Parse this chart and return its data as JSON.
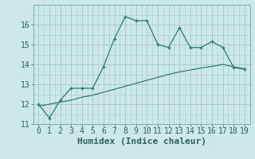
{
  "xlabel": "Humidex (Indice chaleur)",
  "ylabel": "",
  "background_color": "#cce8e8",
  "grid_color": "#aacccc",
  "line_color": "#2e7d6e",
  "x_data": [
    0,
    1,
    2,
    3,
    4,
    5,
    6,
    7,
    8,
    9,
    10,
    11,
    12,
    13,
    14,
    15,
    16,
    17,
    18,
    19
  ],
  "y_curve": [
    12.0,
    11.3,
    12.2,
    12.8,
    12.8,
    12.8,
    13.9,
    15.3,
    16.4,
    16.2,
    16.2,
    15.0,
    14.85,
    15.85,
    14.85,
    14.85,
    15.15,
    14.85,
    13.85,
    13.75
  ],
  "y_line": [
    11.9,
    12.0,
    12.1,
    12.2,
    12.35,
    12.45,
    12.6,
    12.75,
    12.9,
    13.05,
    13.2,
    13.35,
    13.5,
    13.62,
    13.72,
    13.82,
    13.9,
    14.0,
    13.88,
    13.78
  ],
  "ylim": [
    11.0,
    17.0
  ],
  "xlim": [
    -0.5,
    19.5
  ],
  "yticks": [
    11,
    12,
    13,
    14,
    15,
    16
  ],
  "xticks": [
    0,
    1,
    2,
    3,
    4,
    5,
    6,
    7,
    8,
    9,
    10,
    11,
    12,
    13,
    14,
    15,
    16,
    17,
    18,
    19
  ]
}
